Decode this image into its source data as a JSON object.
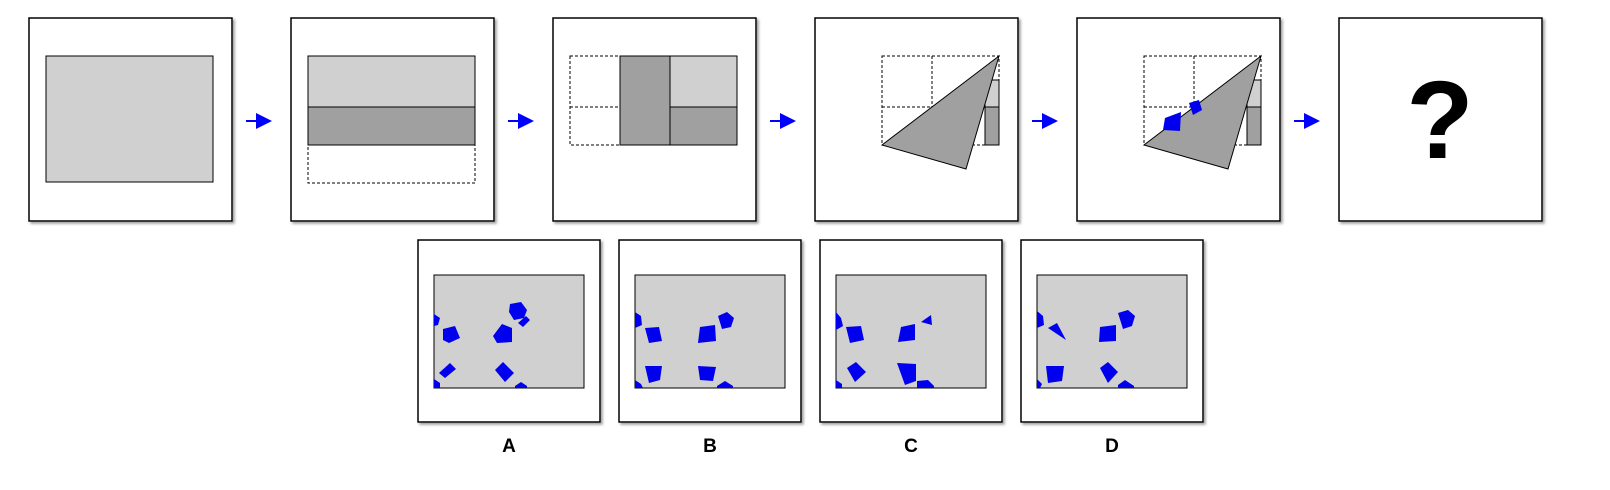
{
  "sequence": {
    "question_mark": "?"
  },
  "options": [
    {
      "label": "A"
    },
    {
      "label": "B"
    },
    {
      "label": "C"
    },
    {
      "label": "D"
    }
  ],
  "colors": {
    "paper": "#d0d0d0",
    "fold": "#a0a0a0",
    "hole": "#0000ee",
    "arrow": "#0000ff",
    "frame": "#000000"
  }
}
